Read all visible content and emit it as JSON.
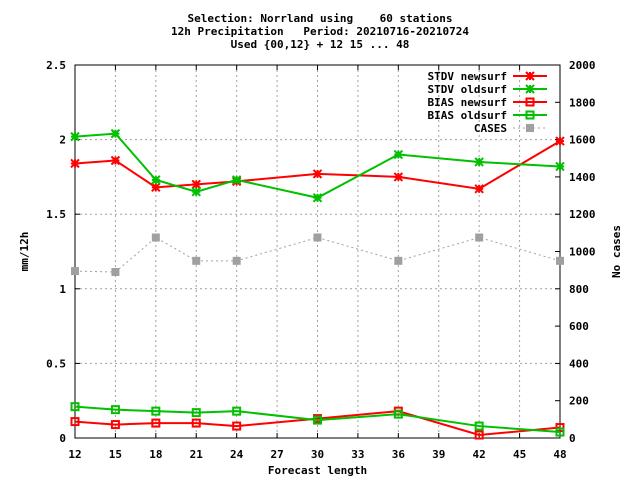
{
  "chart_data": {
    "type": "line",
    "title_lines": [
      "Selection: Norrland using    60 stations",
      "12h Precipitation   Period: 20210716-20210724",
      "Used {00,12} + 12 15 ... 48"
    ],
    "xlabel": "Forecast length",
    "ylabel": "mm/12h",
    "y2label": "No cases",
    "xlim": [
      12,
      48
    ],
    "ylim": [
      0,
      2.5
    ],
    "y2lim": [
      0,
      2000
    ],
    "xticks": [
      12,
      15,
      18,
      21,
      24,
      27,
      30,
      33,
      36,
      39,
      42,
      45,
      48
    ],
    "yticks": [
      0,
      0.5,
      1,
      1.5,
      2,
      2.5
    ],
    "yticklabels": [
      "0",
      "0.5",
      "1",
      "1.5",
      "2",
      "2.5"
    ],
    "y2ticks": [
      0,
      200,
      400,
      600,
      800,
      1000,
      1200,
      1400,
      1600,
      1800,
      2000
    ],
    "grid": true,
    "legend_position": "top-right",
    "x": [
      12,
      15,
      18,
      21,
      24,
      30,
      36,
      42,
      48
    ],
    "series": [
      {
        "name": "STDV newsurf",
        "axis": "y",
        "color": "#ff0000",
        "marker": "star",
        "dashed": false,
        "values": [
          1.84,
          1.86,
          1.68,
          1.7,
          1.72,
          1.77,
          1.75,
          1.67,
          1.99
        ]
      },
      {
        "name": "STDV oldsurf",
        "axis": "y",
        "color": "#00c000",
        "marker": "star",
        "dashed": false,
        "values": [
          2.02,
          2.04,
          1.73,
          1.65,
          1.73,
          1.61,
          1.9,
          1.85,
          1.82
        ]
      },
      {
        "name": "BIAS newsurf",
        "axis": "y",
        "color": "#ff0000",
        "marker": "square",
        "dashed": false,
        "values": [
          0.11,
          0.09,
          0.1,
          0.1,
          0.08,
          0.13,
          0.18,
          0.02,
          0.07
        ]
      },
      {
        "name": "BIAS oldsurf",
        "axis": "y",
        "color": "#00c000",
        "marker": "square",
        "dashed": false,
        "values": [
          0.21,
          0.19,
          0.18,
          0.17,
          0.18,
          0.12,
          0.16,
          0.08,
          0.04
        ]
      },
      {
        "name": "CASES",
        "axis": "y2",
        "color": "#a0a0a0",
        "marker": "filled-square",
        "dashed": true,
        "values": [
          895,
          890,
          1075,
          950,
          950,
          1075,
          950,
          1075,
          950
        ]
      }
    ]
  }
}
